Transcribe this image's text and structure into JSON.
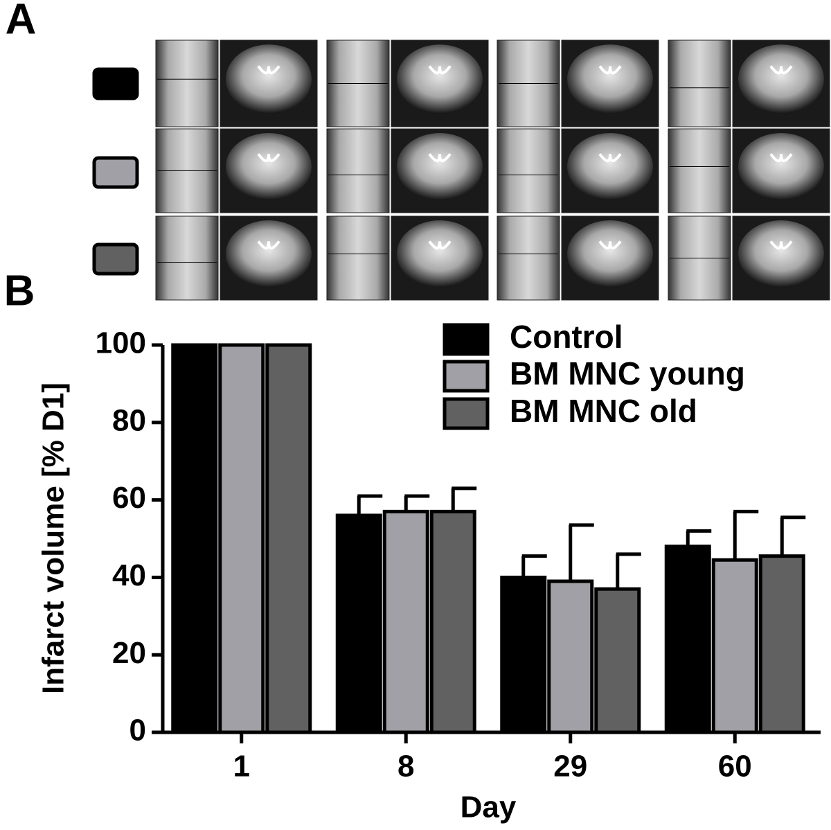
{
  "panel_labels": [
    "A",
    "B"
  ],
  "chart_data": {
    "type": "bar",
    "xlabel": "Day",
    "ylabel": "Infarct volume [%  D1]",
    "categories": [
      "1",
      "8",
      "29",
      "60"
    ],
    "series": [
      {
        "name": "Control",
        "color": "#000000",
        "values": [
          100,
          56,
          40,
          48
        ],
        "errors": [
          0,
          5,
          5.5,
          4
        ]
      },
      {
        "name": "BM MNC young",
        "color": "#a0a0a6",
        "values": [
          100,
          57,
          39,
          44.5
        ],
        "errors": [
          0,
          4,
          14.5,
          12.5
        ]
      },
      {
        "name": "BM MNC old",
        "color": "#616161",
        "values": [
          100,
          57,
          37,
          45.5
        ],
        "errors": [
          0,
          6,
          9,
          10
        ]
      }
    ],
    "ylim": [
      0,
      100
    ],
    "yticks": [
      0,
      20,
      40,
      60,
      80,
      100
    ],
    "legend": "upper right",
    "grid": false
  }
}
